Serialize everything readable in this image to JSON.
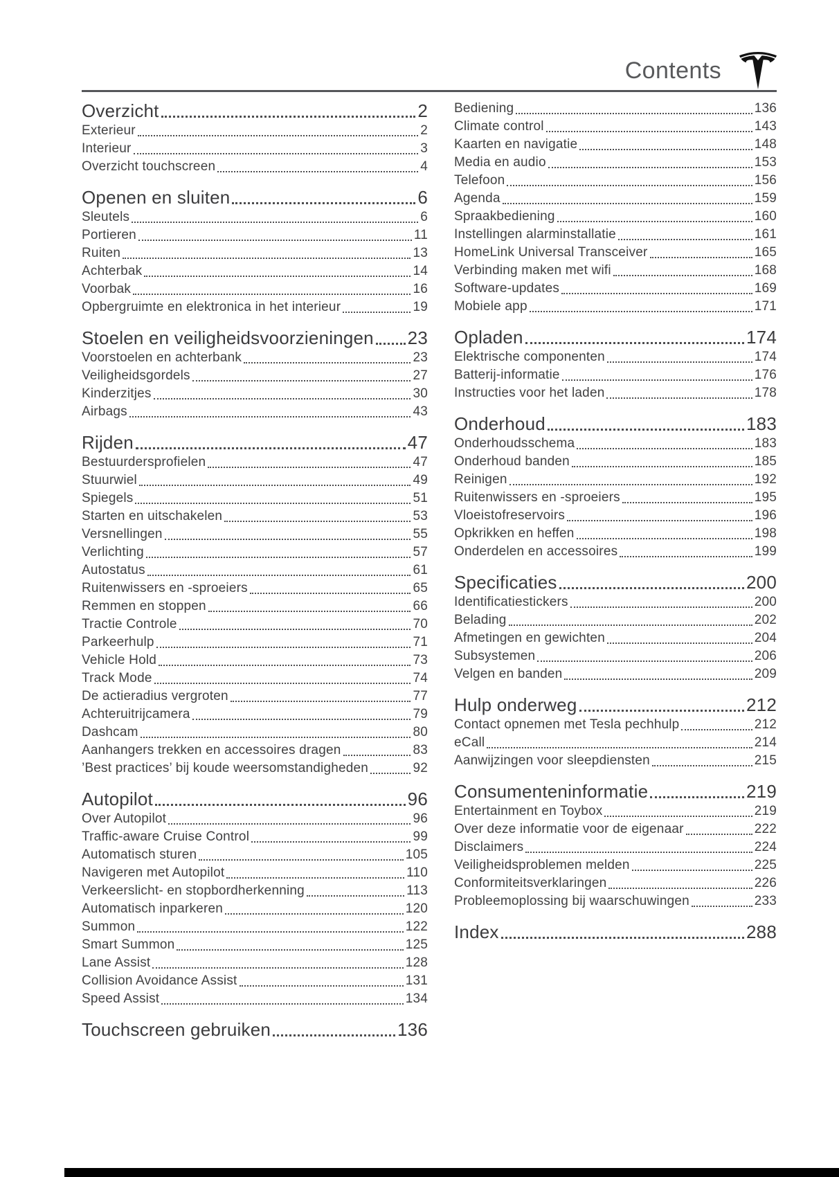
{
  "header": {
    "title": "Contents",
    "logo_icon": "tesla-logo"
  },
  "colors": {
    "header_text": "#58595b",
    "rule": "#55565a",
    "body_text": "#414142",
    "logo": "#121212",
    "bottom_bar": "#000000"
  },
  "toc": {
    "columns": {
      "left": [
        {
          "heading": {
            "label": "Overzicht",
            "page": "2"
          },
          "items": [
            {
              "label": "Exterieur",
              "page": "2"
            },
            {
              "label": "Interieur",
              "page": "3"
            },
            {
              "label": "Overzicht touchscreen",
              "page": "4"
            }
          ]
        },
        {
          "heading": {
            "label": "Openen en sluiten",
            "page": "6"
          },
          "items": [
            {
              "label": "Sleutels",
              "page": "6"
            },
            {
              "label": "Portieren",
              "page": "11"
            },
            {
              "label": "Ruiten",
              "page": "13"
            },
            {
              "label": "Achterbak",
              "page": "14"
            },
            {
              "label": "Voorbak",
              "page": "16"
            },
            {
              "label": "Opbergruimte en elektronica in het interieur",
              "page": "19"
            }
          ]
        },
        {
          "heading": {
            "label": "Stoelen en veiligheidsvoorzieningen",
            "page": "23"
          },
          "items": [
            {
              "label": "Voorstoelen en achterbank",
              "page": "23"
            },
            {
              "label": "Veiligheidsgordels",
              "page": "27"
            },
            {
              "label": "Kinderzitjes",
              "page": "30"
            },
            {
              "label": "Airbags",
              "page": "43"
            }
          ]
        },
        {
          "heading": {
            "label": "Rijden",
            "page": "47"
          },
          "items": [
            {
              "label": "Bestuurdersprofielen",
              "page": "47"
            },
            {
              "label": "Stuurwiel",
              "page": "49"
            },
            {
              "label": "Spiegels",
              "page": "51"
            },
            {
              "label": "Starten en uitschakelen",
              "page": "53"
            },
            {
              "label": "Versnellingen",
              "page": "55"
            },
            {
              "label": "Verlichting",
              "page": "57"
            },
            {
              "label": "Autostatus",
              "page": "61"
            },
            {
              "label": "Ruitenwissers en -sproeiers",
              "page": "65"
            },
            {
              "label": "Remmen en stoppen",
              "page": "66"
            },
            {
              "label": "Tractie Controle",
              "page": "70"
            },
            {
              "label": "Parkeerhulp",
              "page": "71"
            },
            {
              "label": "Vehicle Hold",
              "page": "73"
            },
            {
              "label": "Track Mode",
              "page": "74"
            },
            {
              "label": "De actieradius vergroten",
              "page": "77"
            },
            {
              "label": "Achteruitrijcamera",
              "page": "79"
            },
            {
              "label": "Dashcam",
              "page": "80"
            },
            {
              "label": "Aanhangers trekken en accessoires dragen",
              "page": "83"
            },
            {
              "label": "’Best practices’ bij koude weersomstandigheden",
              "page": "92"
            }
          ]
        },
        {
          "heading": {
            "label": "Autopilot",
            "page": "96"
          },
          "items": [
            {
              "label": "Over Autopilot",
              "page": "96"
            },
            {
              "label": "Traffic-aware Cruise Control",
              "page": "99"
            },
            {
              "label": "Automatisch sturen",
              "page": "105"
            },
            {
              "label": "Navigeren met Autopilot",
              "page": "110"
            },
            {
              "label": "Verkeerslicht- en stopbordherkenning",
              "page": "113"
            },
            {
              "label": "Automatisch inparkeren",
              "page": "120"
            },
            {
              "label": "Summon",
              "page": "122"
            },
            {
              "label": "Smart Summon",
              "page": "125"
            },
            {
              "label": "Lane Assist",
              "page": "128"
            },
            {
              "label": "Collision Avoidance Assist",
              "page": "131"
            },
            {
              "label": "Speed Assist",
              "page": "134"
            }
          ]
        },
        {
          "heading": {
            "label": "Touchscreen gebruiken",
            "page": "136"
          },
          "items": []
        }
      ],
      "right": [
        {
          "heading": null,
          "items": [
            {
              "label": "Bediening",
              "page": "136"
            },
            {
              "label": "Climate control",
              "page": "143"
            },
            {
              "label": "Kaarten en navigatie",
              "page": "148"
            },
            {
              "label": "Media en audio",
              "page": "153"
            },
            {
              "label": "Telefoon",
              "page": "156"
            },
            {
              "label": "Agenda",
              "page": "159"
            },
            {
              "label": "Spraakbediening",
              "page": "160"
            },
            {
              "label": "Instellingen alarminstallatie",
              "page": "161"
            },
            {
              "label": "HomeLink Universal Transceiver",
              "page": "165"
            },
            {
              "label": "Verbinding maken met wifi",
              "page": "168"
            },
            {
              "label": "Software-updates",
              "page": "169"
            },
            {
              "label": "Mobiele app",
              "page": "171"
            }
          ]
        },
        {
          "heading": {
            "label": "Opladen",
            "page": "174"
          },
          "items": [
            {
              "label": "Elektrische componenten",
              "page": "174"
            },
            {
              "label": "Batterij-informatie",
              "page": "176"
            },
            {
              "label": "Instructies voor het laden",
              "page": "178"
            }
          ]
        },
        {
          "heading": {
            "label": "Onderhoud",
            "page": "183"
          },
          "items": [
            {
              "label": "Onderhoudsschema",
              "page": "183"
            },
            {
              "label": "Onderhoud banden",
              "page": "185"
            },
            {
              "label": "Reinigen",
              "page": "192"
            },
            {
              "label": "Ruitenwissers en -sproeiers",
              "page": "195"
            },
            {
              "label": "Vloeistofreservoirs",
              "page": "196"
            },
            {
              "label": "Opkrikken en heffen",
              "page": "198"
            },
            {
              "label": "Onderdelen en accessoires",
              "page": "199"
            }
          ]
        },
        {
          "heading": {
            "label": "Specificaties",
            "page": "200"
          },
          "items": [
            {
              "label": "Identificatiestickers",
              "page": "200"
            },
            {
              "label": "Belading",
              "page": "202"
            },
            {
              "label": "Afmetingen en gewichten",
              "page": "204"
            },
            {
              "label": "Subsystemen",
              "page": "206"
            },
            {
              "label": "Velgen en banden",
              "page": "209"
            }
          ]
        },
        {
          "heading": {
            "label": "Hulp onderweg",
            "page": "212"
          },
          "items": [
            {
              "label": "Contact opnemen met Tesla pechhulp",
              "page": "212"
            },
            {
              "label": "eCall",
              "page": "214"
            },
            {
              "label": "Aanwijzingen voor sleepdiensten",
              "page": "215"
            }
          ]
        },
        {
          "heading": {
            "label": "Consumenteninformatie",
            "page": "219"
          },
          "items": [
            {
              "label": "Entertainment en Toybox",
              "page": "219"
            },
            {
              "label": "Over deze informatie voor de eigenaar",
              "page": "222"
            },
            {
              "label": "Disclaimers",
              "page": "224"
            },
            {
              "label": "Veiligheidsproblemen melden",
              "page": "225"
            },
            {
              "label": "Conformiteitsverklaringen",
              "page": "226"
            },
            {
              "label": "Probleemoplossing bij waarschuwingen",
              "page": "233"
            }
          ]
        },
        {
          "heading": {
            "label": "Index",
            "page": "288"
          },
          "items": []
        }
      ]
    }
  }
}
